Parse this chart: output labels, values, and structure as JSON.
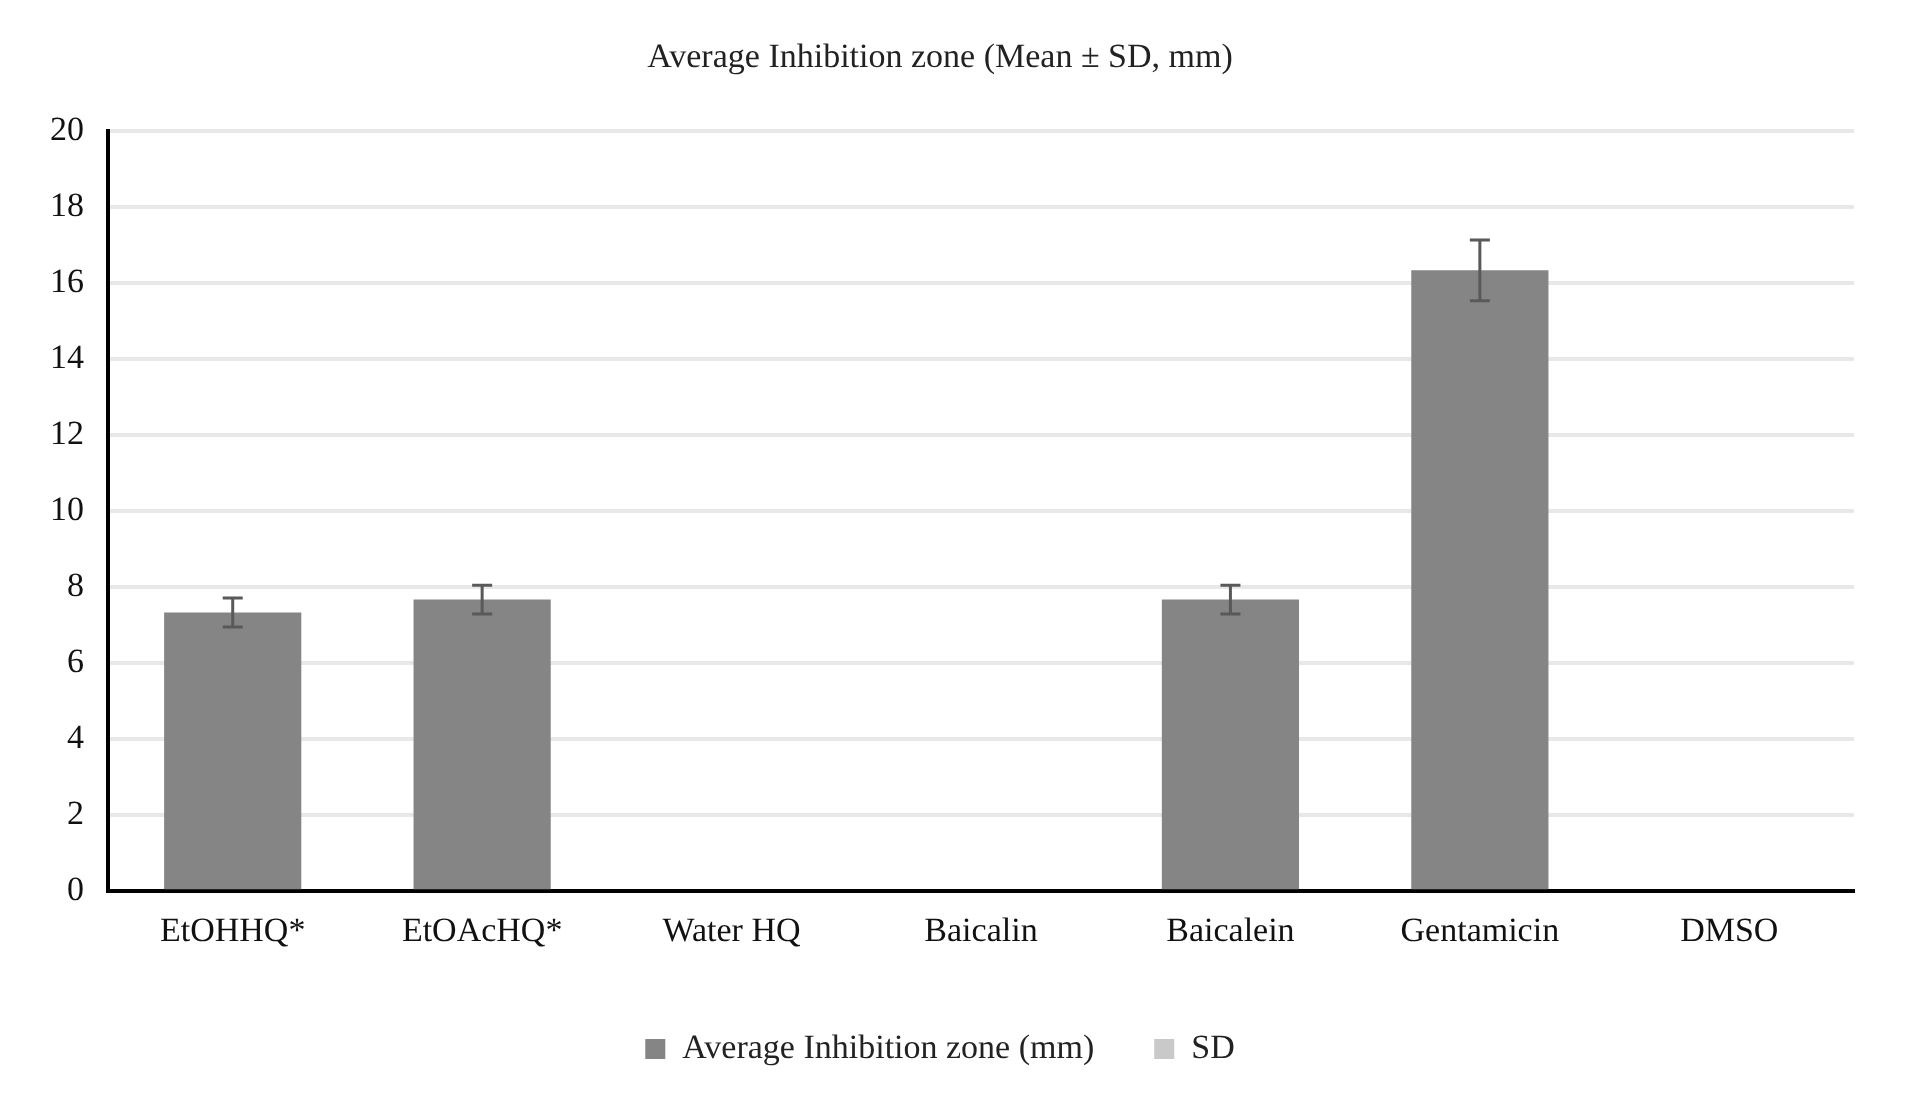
{
  "chart_data": {
    "type": "bar",
    "title": "Average Inhibition zone (Mean ± SD, mm)",
    "categories": [
      "EtOHHQ*",
      "EtOAcHQ*",
      "Water HQ",
      "Baicalin",
      "Baicalein",
      "Gentamicin",
      "DMSO"
    ],
    "series": [
      {
        "name": "Average Inhibition zone (mm)",
        "color": "#858585",
        "values": [
          7.33,
          7.67,
          0,
          0,
          7.67,
          16.33,
          0
        ],
        "errors": [
          0.38,
          0.38,
          null,
          null,
          0.38,
          0.8,
          null
        ]
      },
      {
        "name": "SD",
        "color": "#c9c9c9",
        "values": [
          null,
          null,
          null,
          null,
          null,
          null,
          null
        ]
      }
    ],
    "ylim": [
      0,
      20
    ],
    "yticks": [
      0,
      2,
      4,
      6,
      8,
      10,
      12,
      14,
      16,
      18,
      20
    ],
    "grid": "y",
    "legend": "bottom"
  }
}
